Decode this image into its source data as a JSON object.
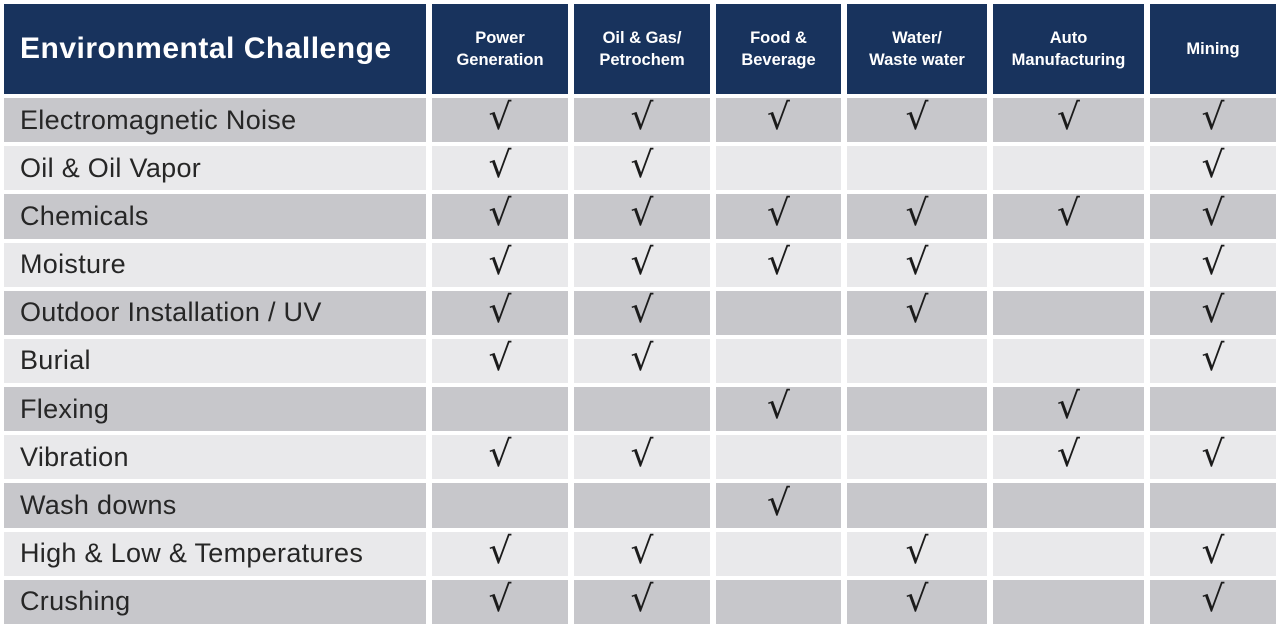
{
  "title": "Environmental Challenge",
  "check_glyph": "√",
  "columns": [
    {
      "label": "Power\nGeneration"
    },
    {
      "label": "Oil & Gas/\nPetrochem"
    },
    {
      "label": "Food &\nBeverage"
    },
    {
      "label": "Water/\nWaste water"
    },
    {
      "label": "Auto\nManufacturing"
    },
    {
      "label": "Mining"
    }
  ],
  "rows": [
    {
      "label": "Electromagnetic Noise",
      "checks": [
        true,
        true,
        true,
        true,
        true,
        true
      ]
    },
    {
      "label": "Oil & Oil Vapor",
      "checks": [
        true,
        true,
        false,
        false,
        false,
        true
      ]
    },
    {
      "label": "Chemicals",
      "checks": [
        true,
        true,
        true,
        true,
        true,
        true
      ]
    },
    {
      "label": "Moisture",
      "checks": [
        true,
        true,
        true,
        true,
        false,
        true
      ]
    },
    {
      "label": "Outdoor Installation / UV",
      "checks": [
        true,
        true,
        false,
        true,
        false,
        true
      ]
    },
    {
      "label": "Burial",
      "checks": [
        true,
        true,
        false,
        false,
        false,
        true
      ]
    },
    {
      "label": "Flexing",
      "checks": [
        false,
        false,
        true,
        false,
        true,
        false
      ]
    },
    {
      "label": "Vibration",
      "checks": [
        true,
        true,
        false,
        false,
        true,
        true
      ]
    },
    {
      "label": "Wash downs",
      "checks": [
        false,
        false,
        true,
        false,
        false,
        false
      ]
    },
    {
      "label": "High & Low & Temperatures",
      "checks": [
        true,
        true,
        false,
        true,
        false,
        true
      ]
    },
    {
      "label": "Crushing",
      "checks": [
        true,
        true,
        false,
        true,
        false,
        true
      ]
    }
  ],
  "colors": {
    "header_bg": "#18335d",
    "header_text": "#ffffff",
    "row_dark": "#c7c7cb",
    "row_light": "#e9e9eb",
    "check": "#1b1b1b",
    "label_text": "#262626",
    "background": "#ffffff"
  }
}
